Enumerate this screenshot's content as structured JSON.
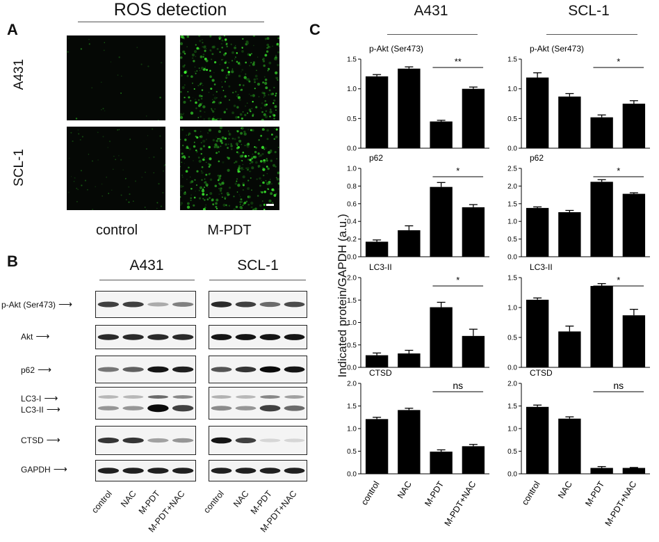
{
  "panel_a": {
    "letter": "A",
    "title": "ROS detection",
    "rows": [
      "A431",
      "SCL-1"
    ],
    "columns": [
      "control",
      "M-PDT"
    ]
  },
  "panel_b": {
    "letter": "B",
    "groups": [
      "A431",
      "SCL-1"
    ],
    "proteins": [
      {
        "label": "p-Akt (Ser473)"
      },
      {
        "label": "Akt"
      },
      {
        "label": "p62"
      },
      {
        "label": "LC3-I",
        "label2": "LC3-II"
      },
      {
        "label": "CTSD"
      },
      {
        "label": "GAPDH"
      }
    ],
    "lanes": [
      "control",
      "NAC",
      "M-PDT",
      "M-PDT+NAC"
    ],
    "band_intensity": {
      "A431": [
        [
          0.75,
          0.75,
          0.25,
          0.45
        ],
        [
          0.85,
          0.85,
          0.85,
          0.85
        ],
        [
          0.5,
          0.6,
          0.95,
          0.9
        ],
        [
          0.35,
          0.35,
          1.0,
          0.75
        ],
        [
          0.8,
          0.8,
          0.3,
          0.35
        ],
        [
          0.9,
          0.9,
          0.9,
          0.9
        ]
      ],
      "SCL-1": [
        [
          0.85,
          0.75,
          0.55,
          0.7
        ],
        [
          0.95,
          0.95,
          0.95,
          0.95
        ],
        [
          0.65,
          0.8,
          1.0,
          0.95
        ],
        [
          0.4,
          0.35,
          0.75,
          0.55
        ],
        [
          0.95,
          0.75,
          0.05,
          0.05
        ],
        [
          0.9,
          0.9,
          0.9,
          0.9
        ]
      ]
    }
  },
  "panel_c": {
    "letter": "C",
    "groups": [
      "A431",
      "SCL-1"
    ],
    "ylabel": "Indicated protein/GAPDH (a.u.)",
    "categories": [
      "control",
      "NAC",
      "M-PDT",
      "M-PDT+NAC"
    ]
  },
  "chart_data": [
    {
      "type": "bar",
      "title": "p-Akt (Ser473)",
      "group": "A431",
      "categories": [
        "control",
        "NAC",
        "M-PDT",
        "M-PDT+NAC"
      ],
      "values": [
        1.21,
        1.34,
        0.45,
        1.0
      ],
      "errors": [
        0.03,
        0.03,
        0.02,
        0.03
      ],
      "ylim": [
        0,
        1.5
      ],
      "yticks": [
        "0.0",
        "0.5",
        "1.0",
        "1.5"
      ],
      "significance": "**"
    },
    {
      "type": "bar",
      "title": "p-Akt (Ser473)",
      "group": "SCL-1",
      "categories": [
        "control",
        "NAC",
        "M-PDT",
        "M-PDT+NAC"
      ],
      "values": [
        1.19,
        0.87,
        0.52,
        0.75
      ],
      "errors": [
        0.08,
        0.05,
        0.04,
        0.05
      ],
      "ylim": [
        0,
        1.5
      ],
      "yticks": [
        "0.0",
        "0.5",
        "1.0",
        "1.5"
      ],
      "significance": "*"
    },
    {
      "type": "bar",
      "title": "p62",
      "group": "A431",
      "categories": [
        "control",
        "NAC",
        "M-PDT",
        "M-PDT+NAC"
      ],
      "values": [
        0.17,
        0.3,
        0.79,
        0.56
      ],
      "errors": [
        0.02,
        0.05,
        0.05,
        0.03
      ],
      "ylim": [
        0,
        1.0
      ],
      "yticks": [
        "0.0",
        "0.2",
        "0.4",
        "0.6",
        "0.8",
        "1.0"
      ],
      "significance": "*"
    },
    {
      "type": "bar",
      "title": "p62",
      "group": "SCL-1",
      "categories": [
        "control",
        "NAC",
        "M-PDT",
        "M-PDT+NAC"
      ],
      "values": [
        1.38,
        1.26,
        2.12,
        1.78
      ],
      "errors": [
        0.03,
        0.05,
        0.06,
        0.03
      ],
      "ylim": [
        0,
        2.5
      ],
      "yticks": [
        "0.0",
        "0.5",
        "1.0",
        "1.5",
        "2.0",
        "2.5"
      ],
      "significance": "*"
    },
    {
      "type": "bar",
      "title": "LC3-II",
      "group": "A431",
      "categories": [
        "control",
        "NAC",
        "M-PDT",
        "M-PDT+NAC"
      ],
      "values": [
        0.27,
        0.31,
        1.34,
        0.7
      ],
      "errors": [
        0.05,
        0.07,
        0.11,
        0.15
      ],
      "ylim": [
        0,
        2.0
      ],
      "yticks": [
        "0.0",
        "0.5",
        "1.0",
        "1.5",
        "2.0"
      ],
      "significance": "*"
    },
    {
      "type": "bar",
      "title": "LC3-II",
      "group": "SCL-1",
      "categories": [
        "control",
        "NAC",
        "M-PDT",
        "M-PDT+NAC"
      ],
      "values": [
        1.13,
        0.6,
        1.36,
        0.87
      ],
      "errors": [
        0.03,
        0.09,
        0.04,
        0.1
      ],
      "ylim": [
        0,
        1.5
      ],
      "yticks": [
        "0.0",
        "0.5",
        "1.0",
        "1.5"
      ],
      "significance": "*"
    },
    {
      "type": "bar",
      "title": "CTSD",
      "group": "A431",
      "categories": [
        "control",
        "NAC",
        "M-PDT",
        "M-PDT+NAC"
      ],
      "values": [
        1.21,
        1.41,
        0.49,
        0.61
      ],
      "errors": [
        0.04,
        0.04,
        0.04,
        0.04
      ],
      "ylim": [
        0,
        2.0
      ],
      "yticks": [
        "0.0",
        "0.5",
        "1.0",
        "1.5",
        "2.0"
      ],
      "significance": "ns"
    },
    {
      "type": "bar",
      "title": "CTSD",
      "group": "SCL-1",
      "categories": [
        "control",
        "NAC",
        "M-PDT",
        "M-PDT+NAC"
      ],
      "values": [
        1.48,
        1.22,
        0.13,
        0.13
      ],
      "errors": [
        0.04,
        0.04,
        0.03,
        0.01
      ],
      "ylim": [
        0,
        2.0
      ],
      "yticks": [
        "0.0",
        "0.5",
        "1.0",
        "1.5",
        "2.0"
      ],
      "significance": "ns"
    }
  ]
}
